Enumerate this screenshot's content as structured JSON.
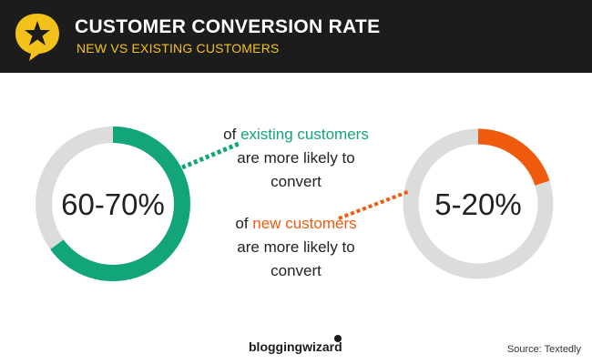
{
  "header": {
    "title": "CUSTOMER CONVERSION RATE",
    "subtitle": "NEW VS EXISTING CUSTOMERS",
    "logo_icon": "star-speech-bubble-icon"
  },
  "chart_data": {
    "type": "pie",
    "title": "CUSTOMER CONVERSION RATE",
    "subtitle": "NEW VS EXISTING CUSTOMERS",
    "series": [
      {
        "name": "existing customers",
        "label": "60-70%",
        "range": [
          60,
          70
        ],
        "arc_percent": 65,
        "color": "#12a57a",
        "caption": {
          "prefix": "of ",
          "highlight": "existing customers",
          "suffix": "are more likely to convert"
        }
      },
      {
        "name": "new customers",
        "label": "5-20%",
        "range": [
          5,
          20
        ],
        "arc_percent": 20,
        "color": "#f05a0c",
        "caption": {
          "prefix": "of ",
          "highlight": "new customers",
          "suffix": "are more likely to convert"
        }
      }
    ],
    "track_color": "#dcdcdc"
  },
  "captions": {
    "existing": {
      "prefix": "of ",
      "highlight": "existing customers",
      "line2": "are more likely to",
      "line3": "convert"
    },
    "new": {
      "prefix": "of ",
      "highlight": "new customers",
      "line2": "are more likely to",
      "line3": "convert"
    }
  },
  "footer": {
    "brand": "bloggingwizard",
    "source": "Source: Textedly"
  }
}
